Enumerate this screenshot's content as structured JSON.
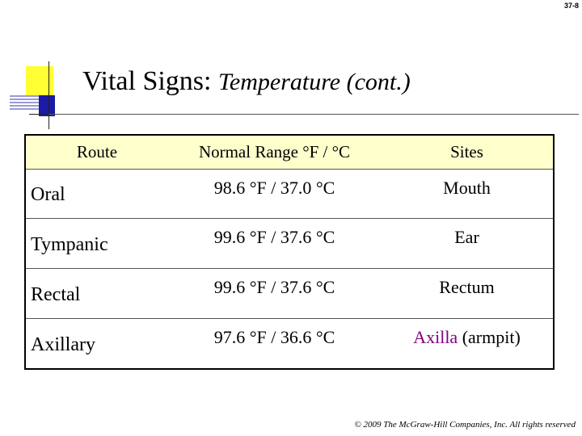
{
  "slide": {
    "number": "37-8",
    "title": "Vital Signs:",
    "subtitle": "Temperature (cont.)",
    "footer": "© 2009 The McGraw-Hill Companies, Inc. All rights reserved"
  },
  "colors": {
    "header_bg": "#ffffcc",
    "highlight_text": "#800080",
    "logo_yellow": "#ffff33",
    "logo_blue": "#1a1aa6"
  },
  "table": {
    "headers": [
      "Route",
      "Normal Range °F / °C",
      "Sites"
    ],
    "rows": [
      {
        "route": "Oral",
        "range": "98.6 °F / 37.0 °C",
        "site": "Mouth",
        "site_note": ""
      },
      {
        "route": "Tympanic",
        "range": "99.6 °F / 37.6 °C",
        "site": "Ear",
        "site_note": ""
      },
      {
        "route": "Rectal",
        "range": "99.6 °F / 37.6 °C",
        "site": "Rectum",
        "site_note": ""
      },
      {
        "route": "Axillary",
        "range": "97.6 °F / 36.6 °C",
        "site": "Axilla",
        "site_note": " (armpit)"
      }
    ]
  }
}
